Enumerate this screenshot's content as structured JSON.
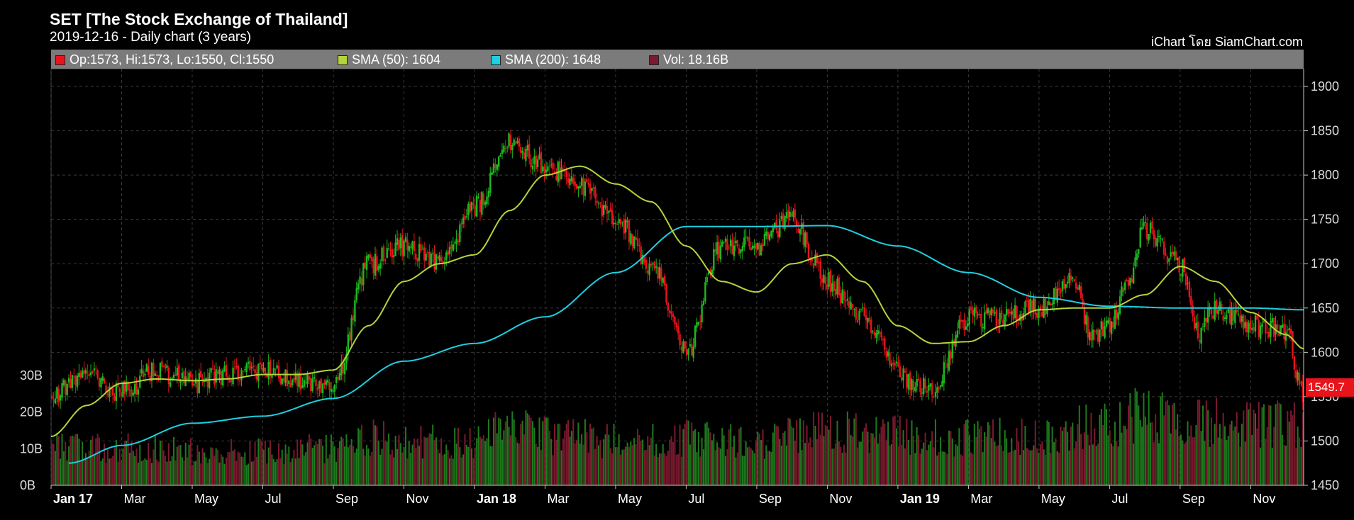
{
  "header": {
    "title": "SET [The Stock Exchange of Thailand]",
    "subtitle": "2019-12-16 - Daily chart (3 years)",
    "credit": "iChart โดย SiamChart.com"
  },
  "legend": {
    "ohlc": {
      "label": "Op:1573, Hi:1573, Lo:1550, Cl:1550",
      "color": "#e8141c"
    },
    "sma50": {
      "label": "SMA (50): 1604",
      "color": "#b4d43c"
    },
    "sma200": {
      "label": "SMA (200): 1648",
      "color": "#1ecfe0"
    },
    "volume": {
      "label": "Vol: 18.16B",
      "color": "#7a1a2e"
    }
  },
  "last_price_label": "1549.7",
  "chart_data": {
    "type": "candlestick-with-volume",
    "title": "SET [The Stock Exchange of Thailand]",
    "x_tick_labels": [
      "Jan 17",
      "Mar",
      "May",
      "Jul",
      "Sep",
      "Nov",
      "Jan 18",
      "Mar",
      "May",
      "Jul",
      "Sep",
      "Nov",
      "Jan 19",
      "Mar",
      "May",
      "Jul",
      "Sep",
      "Nov"
    ],
    "x_tick_bold": [
      true,
      false,
      false,
      false,
      false,
      false,
      true,
      false,
      false,
      false,
      false,
      false,
      true,
      false,
      false,
      false,
      false,
      false
    ],
    "price_axis": {
      "ticks": [
        1450,
        1500,
        1550,
        1600,
        1650,
        1700,
        1750,
        1800,
        1850,
        1900
      ],
      "tick_labels": [
        "1450",
        "1500",
        "1550",
        "1600",
        "1650",
        "1700",
        "1750",
        "1800",
        "1850",
        "1900"
      ],
      "range": [
        1450,
        1920
      ]
    },
    "volume_axis": {
      "tick_labels": [
        "0B",
        "10B",
        "20B",
        "30B"
      ],
      "ticks_billion": [
        0,
        10,
        20,
        30
      ],
      "range_billion": [
        0,
        30
      ]
    },
    "x_range_months": [
      0,
      35.5
    ],
    "close": [
      [
        0,
        1550
      ],
      [
        1,
        1578
      ],
      [
        2,
        1555
      ],
      [
        3,
        1580
      ],
      [
        4,
        1565
      ],
      [
        5,
        1575
      ],
      [
        6,
        1580
      ],
      [
        7,
        1570
      ],
      [
        8,
        1562
      ],
      [
        9,
        1700
      ],
      [
        10,
        1720
      ],
      [
        11,
        1700
      ],
      [
        12,
        1765
      ],
      [
        13,
        1840
      ],
      [
        14,
        1810
      ],
      [
        15,
        1790
      ],
      [
        16,
        1750
      ],
      [
        17,
        1700
      ],
      [
        18,
        1600
      ],
      [
        19,
        1720
      ],
      [
        20,
        1720
      ],
      [
        21,
        1750
      ],
      [
        22,
        1680
      ],
      [
        23,
        1640
      ],
      [
        24,
        1580
      ],
      [
        24.5,
        1560
      ],
      [
        25,
        1560
      ],
      [
        26,
        1640
      ],
      [
        27,
        1640
      ],
      [
        28,
        1650
      ],
      [
        29,
        1680
      ],
      [
        29.5,
        1620
      ],
      [
        30,
        1630
      ],
      [
        30.5,
        1680
      ],
      [
        31,
        1740
      ],
      [
        32,
        1700
      ],
      [
        32.5,
        1620
      ],
      [
        33,
        1650
      ],
      [
        34,
        1630
      ],
      [
        35,
        1625
      ],
      [
        35.5,
        1550
      ]
    ],
    "sma50": [
      [
        0,
        1505
      ],
      [
        1,
        1540
      ],
      [
        2,
        1565
      ],
      [
        3,
        1570
      ],
      [
        4,
        1568
      ],
      [
        5,
        1570
      ],
      [
        6,
        1575
      ],
      [
        7,
        1575
      ],
      [
        8,
        1580
      ],
      [
        9,
        1630
      ],
      [
        10,
        1680
      ],
      [
        11,
        1700
      ],
      [
        12,
        1710
      ],
      [
        13,
        1760
      ],
      [
        14,
        1800
      ],
      [
        15,
        1810
      ],
      [
        16,
        1790
      ],
      [
        17,
        1770
      ],
      [
        18,
        1720
      ],
      [
        19,
        1680
      ],
      [
        20,
        1668
      ],
      [
        21,
        1700
      ],
      [
        22,
        1710
      ],
      [
        23,
        1680
      ],
      [
        24,
        1630
      ],
      [
        25,
        1610
      ],
      [
        26,
        1612
      ],
      [
        27,
        1630
      ],
      [
        28,
        1648
      ],
      [
        29,
        1650
      ],
      [
        30,
        1650
      ],
      [
        31,
        1665
      ],
      [
        32,
        1697
      ],
      [
        33,
        1680
      ],
      [
        34,
        1645
      ],
      [
        35,
        1620
      ],
      [
        35.5,
        1604
      ]
    ],
    "sma200": [
      [
        0.5,
        1475
      ],
      [
        2,
        1495
      ],
      [
        4,
        1520
      ],
      [
        6,
        1528
      ],
      [
        8,
        1548
      ],
      [
        10,
        1590
      ],
      [
        12,
        1610
      ],
      [
        14,
        1640
      ],
      [
        16,
        1690
      ],
      [
        18,
        1742
      ],
      [
        20,
        1742
      ],
      [
        22,
        1743
      ],
      [
        24,
        1720
      ],
      [
        26,
        1690
      ],
      [
        28,
        1662
      ],
      [
        30,
        1652
      ],
      [
        32,
        1650
      ],
      [
        34,
        1650
      ],
      [
        35.5,
        1648
      ]
    ],
    "volume_billion": [
      [
        0,
        12
      ],
      [
        2,
        11
      ],
      [
        4,
        10
      ],
      [
        6,
        10
      ],
      [
        8,
        11
      ],
      [
        9,
        14
      ],
      [
        10,
        13
      ],
      [
        12,
        13
      ],
      [
        13,
        17
      ],
      [
        14,
        15
      ],
      [
        15,
        14
      ],
      [
        16,
        13
      ],
      [
        18,
        14
      ],
      [
        20,
        13
      ],
      [
        22,
        16
      ],
      [
        24,
        15
      ],
      [
        26,
        14
      ],
      [
        28,
        15
      ],
      [
        30,
        18
      ],
      [
        31,
        21
      ],
      [
        32,
        20
      ],
      [
        33,
        19
      ],
      [
        34,
        18
      ],
      [
        35.5,
        18.16
      ]
    ],
    "last": {
      "open": 1573,
      "high": 1573,
      "low": 1550,
      "close": 1550,
      "sma50": 1604,
      "sma200": 1648,
      "volume_billion": 18.16
    },
    "colors": {
      "up": "#1fb81f",
      "down": "#e8141c",
      "vol_up": "#1e7a1e",
      "vol_down": "#7a1a2e",
      "sma50": "#b4d43c",
      "sma200": "#1ecfe0",
      "grid": "#3a3a3a",
      "axis": "#c8c8c8"
    },
    "grid": true,
    "legend_placement": "top"
  }
}
